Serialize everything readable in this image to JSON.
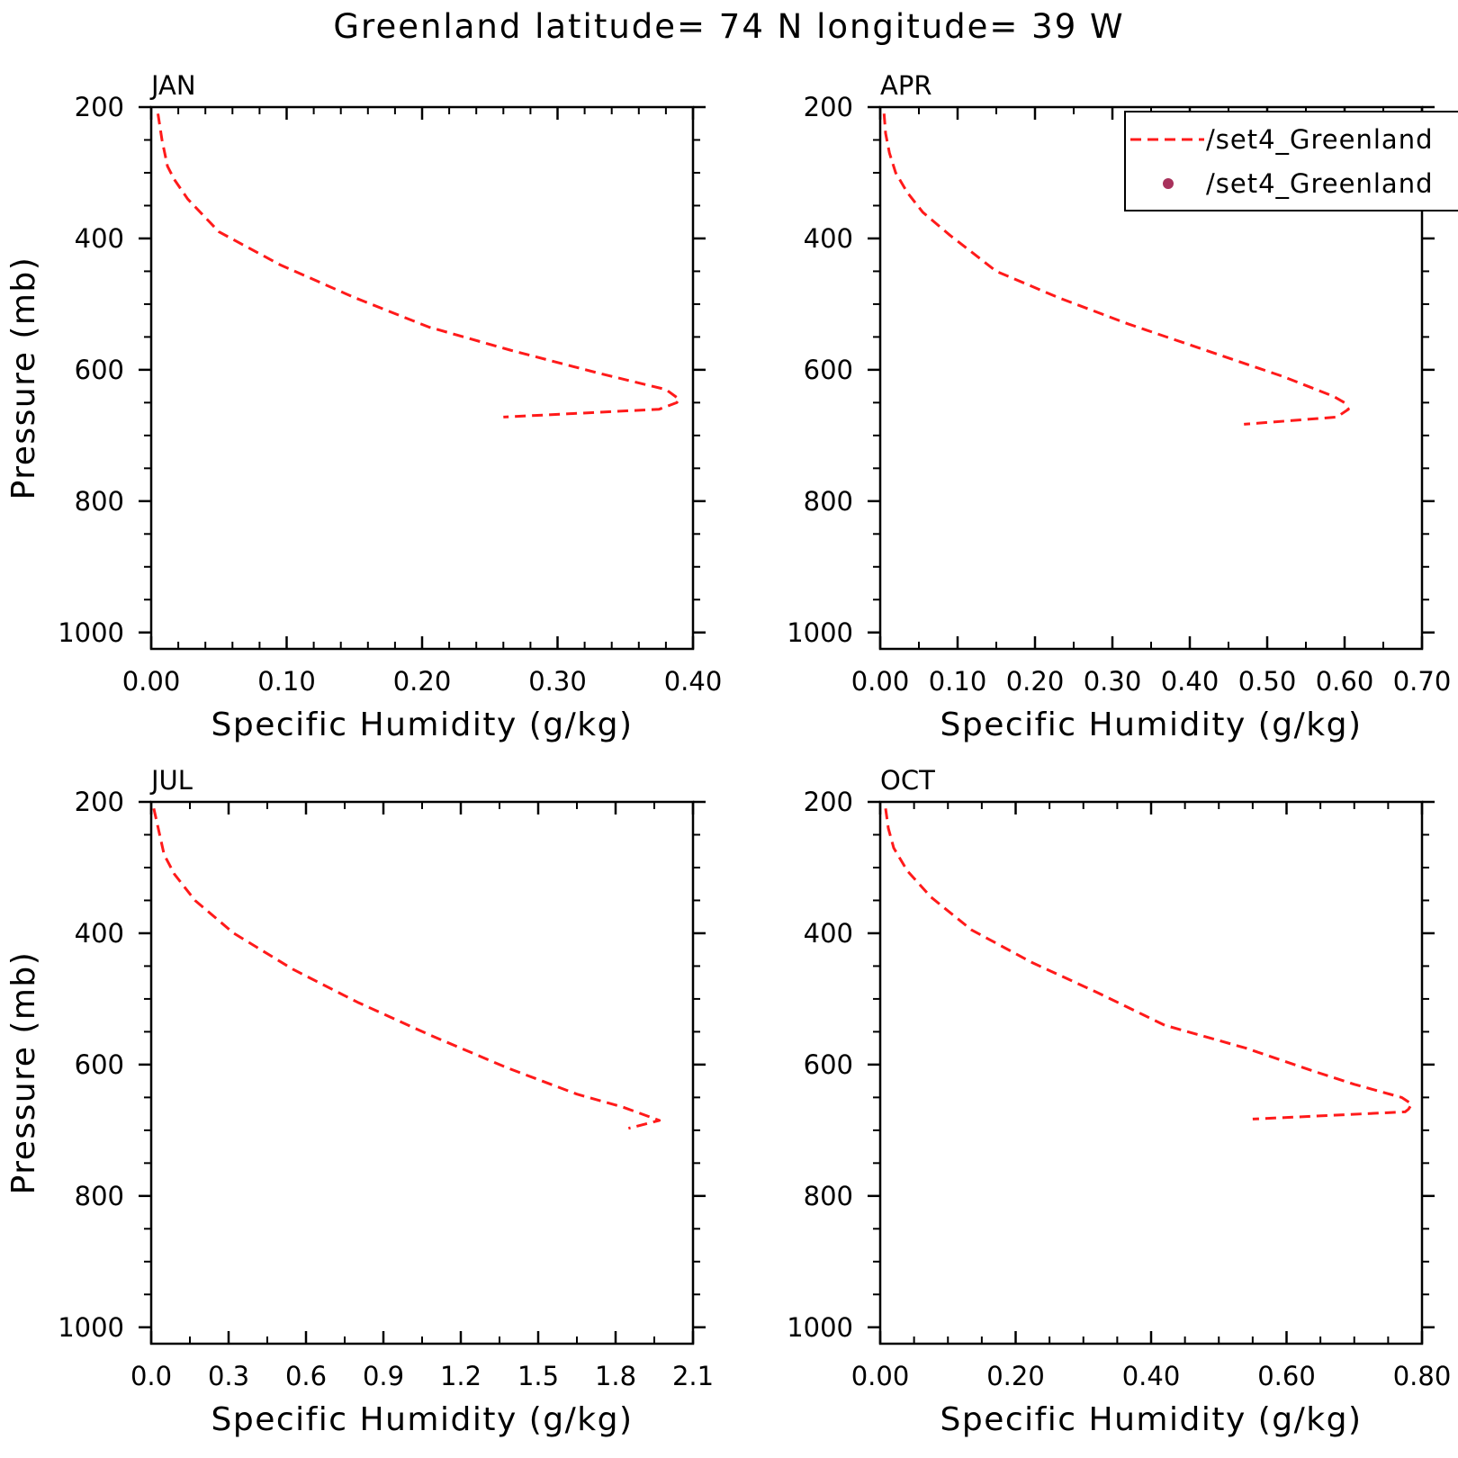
{
  "title": "Greenland  latitude= 74 N longitude= 39 W",
  "colors": {
    "series_line": "#ff1a1a",
    "series_marker": "#a8325c",
    "axes": "#000000",
    "background": "#ffffff"
  },
  "legend": {
    "placement": "top-right of APR panel",
    "entries": [
      {
        "label": "/set4_Greenland",
        "style": "dashed-line",
        "color": "#ff1a1a"
      },
      {
        "label": "/set4_Greenland",
        "style": "dot",
        "color": "#a8325c"
      }
    ]
  },
  "chart_data": [
    {
      "type": "line",
      "month": "JAN",
      "xlabel": "Specific Humidity (g/kg)",
      "ylabel": "Pressure (mb)",
      "xlim": [
        0,
        0.4
      ],
      "ylim": [
        200,
        1025
      ],
      "y_inverted": true,
      "x_ticks": [
        "0.00",
        "0.10",
        "0.20",
        "0.30",
        "0.40"
      ],
      "y_ticks": [
        "200",
        "400",
        "600",
        "800",
        "1000"
      ],
      "series": [
        {
          "x": [
            0.005,
            0.008,
            0.012,
            0.017,
            0.027,
            0.05,
            0.095,
            0.15,
            0.205,
            0.265,
            0.33,
            0.38,
            0.39,
            0.388,
            0.375,
            0.26
          ],
          "y": [
            210,
            250,
            290,
            310,
            340,
            390,
            440,
            490,
            535,
            570,
            605,
            630,
            645,
            650,
            660,
            672
          ]
        }
      ]
    },
    {
      "type": "line",
      "month": "APR",
      "xlabel": "Specific Humidity (g/kg)",
      "ylabel": "",
      "xlim": [
        0,
        0.7
      ],
      "ylim": [
        200,
        1025
      ],
      "y_inverted": true,
      "x_ticks": [
        "0.00",
        "0.10",
        "0.20",
        "0.30",
        "0.40",
        "0.50",
        "0.60",
        "0.70"
      ],
      "y_ticks": [
        "200",
        "400",
        "600",
        "800",
        "1000"
      ],
      "series": [
        {
          "x": [
            0.005,
            0.007,
            0.012,
            0.02,
            0.035,
            0.055,
            0.09,
            0.15,
            0.23,
            0.32,
            0.42,
            0.52,
            0.585,
            0.6,
            0.605,
            0.59,
            0.47
          ],
          "y": [
            210,
            240,
            270,
            300,
            330,
            360,
            395,
            450,
            490,
            530,
            570,
            610,
            640,
            650,
            660,
            672,
            683
          ]
        }
      ]
    },
    {
      "type": "line",
      "month": "JUL",
      "xlabel": "Specific Humidity (g/kg)",
      "ylabel": "Pressure (mb)",
      "xlim": [
        0,
        2.1
      ],
      "ylim": [
        200,
        1025
      ],
      "y_inverted": true,
      "x_ticks": [
        "0.0",
        "0.3",
        "0.6",
        "0.9",
        "1.2",
        "1.5",
        "1.8",
        "2.1"
      ],
      "y_ticks": [
        "200",
        "400",
        "600",
        "800",
        "1000"
      ],
      "series": [
        {
          "x": [
            0.01,
            0.03,
            0.05,
            0.09,
            0.17,
            0.32,
            0.55,
            0.8,
            1.08,
            1.38,
            1.65,
            1.83,
            1.9,
            1.97,
            1.85
          ],
          "y": [
            210,
            245,
            280,
            310,
            350,
            400,
            455,
            505,
            555,
            605,
            645,
            665,
            675,
            685,
            697
          ]
        }
      ]
    },
    {
      "type": "line",
      "month": "OCT",
      "xlabel": "Specific Humidity (g/kg)",
      "ylabel": "",
      "xlim": [
        0,
        0.8
      ],
      "ylim": [
        200,
        1025
      ],
      "y_inverted": true,
      "x_ticks": [
        "0.00",
        "0.20",
        "0.40",
        "0.60",
        "0.80"
      ],
      "y_ticks": [
        "200",
        "400",
        "600",
        "800",
        "1000"
      ],
      "series": [
        {
          "x": [
            0.008,
            0.012,
            0.02,
            0.04,
            0.075,
            0.135,
            0.225,
            0.32,
            0.42,
            0.54,
            0.64,
            0.7,
            0.77,
            0.785,
            0.78,
            0.775,
            0.55
          ],
          "y": [
            210,
            240,
            270,
            305,
            345,
            395,
            445,
            490,
            540,
            575,
            610,
            630,
            650,
            660,
            668,
            672,
            683
          ]
        }
      ]
    }
  ]
}
